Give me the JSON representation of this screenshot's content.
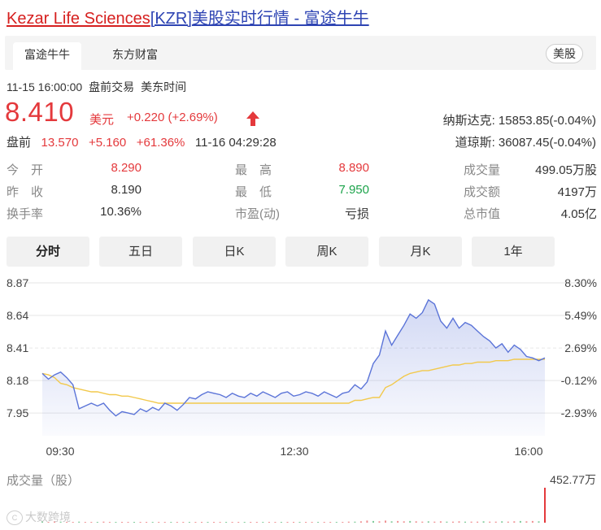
{
  "header": {
    "company": "Kezar Life Sciences",
    "ticker": "[KZR]",
    "suffix": "美股实时行情 - 富途牛牛"
  },
  "source_tabs": [
    {
      "label": "富途牛牛",
      "active": true
    },
    {
      "label": "东方财富",
      "active": false
    }
  ],
  "market_badge": "美股",
  "status": {
    "datetime": "11-15 16:00:00",
    "session": "盘前交易",
    "timezone": "美东时间"
  },
  "quote": {
    "price": "8.410",
    "unit": "美元",
    "change": "+0.220 (+2.69%)",
    "direction": "up",
    "premarket_label": "盘前",
    "premarket_price": "13.570",
    "premarket_change": "+5.160",
    "premarket_pct": "+61.36%",
    "premarket_time": "11-16 04:29:28"
  },
  "indices": [
    {
      "text": "纳斯达克: 15853.85(-0.04%)"
    },
    {
      "text": "道琼斯: 36087.45(-0.04%)"
    }
  ],
  "stats": {
    "col1": [
      {
        "label": "今　开",
        "value": "8.290",
        "color": "red"
      },
      {
        "label": "昨　收",
        "value": "8.190",
        "color": "normal"
      },
      {
        "label": "换手率",
        "value": "10.36%",
        "color": "normal"
      }
    ],
    "col2": [
      {
        "label": "最　高",
        "value": "8.890",
        "color": "red"
      },
      {
        "label": "最　低",
        "value": "7.950",
        "color": "green"
      },
      {
        "label": "市盈(动)",
        "value": "亏损",
        "color": "normal"
      }
    ],
    "col3": [
      {
        "label": "成交量",
        "value": "499.05万股",
        "color": "normal"
      },
      {
        "label": "成交额",
        "value": "4197万",
        "color": "normal"
      },
      {
        "label": "总市值",
        "value": "4.05亿",
        "color": "normal"
      }
    ]
  },
  "period_tabs": [
    {
      "label": "分时",
      "active": true
    },
    {
      "label": "五日",
      "active": false
    },
    {
      "label": "日K",
      "active": false
    },
    {
      "label": "周K",
      "active": false
    },
    {
      "label": "月K",
      "active": false
    },
    {
      "label": "1年",
      "active": false
    }
  ],
  "volume": {
    "title": "成交量（股）",
    "max_label": "452.77万"
  },
  "watermark": "大数跨境",
  "colors": {
    "up": "#e4393c",
    "down": "#1ba34a",
    "price_line": "#5b74d8",
    "avg_line": "#f2c94c"
  },
  "chart_data": {
    "type": "line",
    "xlabels": [
      "09:30",
      "12:30",
      "16:00"
    ],
    "y_ticks_left": [
      "8.87",
      "8.64",
      "8.41",
      "8.18",
      "7.95"
    ],
    "y_ticks_right": [
      "8.30%",
      "5.49%",
      "2.69%",
      "-0.12%",
      "-2.93%"
    ],
    "ylim": [
      7.79,
      8.87
    ],
    "series": [
      {
        "name": "",
        "values": [
          8.23,
          8.19,
          8.22,
          8.24,
          8.2,
          8.15,
          7.98,
          8.0,
          8.02,
          8.0,
          8.02,
          7.97,
          7.93,
          7.96,
          7.95,
          7.94,
          7.98,
          7.96,
          7.99,
          7.97,
          8.02,
          8.0,
          7.97,
          8.01,
          8.06,
          8.05,
          8.08,
          8.1,
          8.09,
          8.08,
          8.06,
          8.09,
          8.07,
          8.06,
          8.09,
          8.07,
          8.1,
          8.08,
          8.06,
          8.09,
          8.1,
          8.07,
          8.08,
          8.1,
          8.09,
          8.07,
          8.1,
          8.08,
          8.06,
          8.09,
          8.1,
          8.15,
          8.12,
          8.17,
          8.3,
          8.36,
          8.53,
          8.43,
          8.5,
          8.57,
          8.65,
          8.62,
          8.66,
          8.75,
          8.72,
          8.6,
          8.55,
          8.62,
          8.55,
          8.59,
          8.57,
          8.53,
          8.49,
          8.46,
          8.41,
          8.44,
          8.38,
          8.43,
          8.4,
          8.35,
          8.34,
          8.32,
          8.34
        ]
      },
      {
        "name": "",
        "values": [
          8.23,
          8.22,
          8.2,
          8.16,
          8.15,
          8.13,
          8.12,
          8.11,
          8.1,
          8.1,
          8.09,
          8.08,
          8.08,
          8.07,
          8.07,
          8.06,
          8.05,
          8.04,
          8.03,
          8.02,
          8.02,
          8.02,
          8.02,
          8.02,
          8.02,
          8.02,
          8.02,
          8.02,
          8.02,
          8.02,
          8.02,
          8.02,
          8.02,
          8.02,
          8.02,
          8.02,
          8.02,
          8.02,
          8.02,
          8.02,
          8.02,
          8.02,
          8.02,
          8.02,
          8.02,
          8.02,
          8.02,
          8.02,
          8.02,
          8.02,
          8.02,
          8.04,
          8.04,
          8.05,
          8.06,
          8.06,
          8.13,
          8.15,
          8.18,
          8.21,
          8.23,
          8.24,
          8.25,
          8.25,
          8.26,
          8.27,
          8.28,
          8.29,
          8.29,
          8.3,
          8.3,
          8.31,
          8.31,
          8.31,
          8.32,
          8.32,
          8.32,
          8.33,
          8.33,
          8.33,
          8.33,
          8.33,
          8.33
        ]
      }
    ],
    "volume_values": [
      0.05,
      0.02,
      0.04,
      0.03,
      0.02,
      0.02,
      0.03,
      0.02,
      0.01,
      0.02,
      0.03,
      0.02,
      0.02,
      0.01,
      0.02,
      0.02,
      0.01,
      0.02,
      0.01,
      0.02,
      0.02,
      0.01,
      0.02,
      0.01,
      0.02,
      0.01,
      0.02,
      0.01,
      0.01,
      0.02,
      0.01,
      0.01,
      0.02,
      0.01,
      0.01,
      0.02,
      0.01,
      0.01,
      0.01,
      0.02,
      0.01,
      0.01,
      0.02,
      0.01,
      0.01,
      0.02,
      0.01,
      0.01,
      0.02,
      0.02,
      0.03,
      0.03,
      0.04,
      0.06,
      0.05,
      0.04,
      0.06,
      0.04,
      0.05,
      0.04,
      0.05,
      0.04,
      0.03,
      0.04,
      0.03,
      0.04,
      0.03,
      0.03,
      0.04,
      0.03,
      0.03,
      0.03,
      0.04,
      0.03,
      0.03,
      0.04,
      0.03,
      0.04,
      0.05,
      0.04,
      0.05,
      0.04,
      1.0
    ],
    "grid": true
  }
}
